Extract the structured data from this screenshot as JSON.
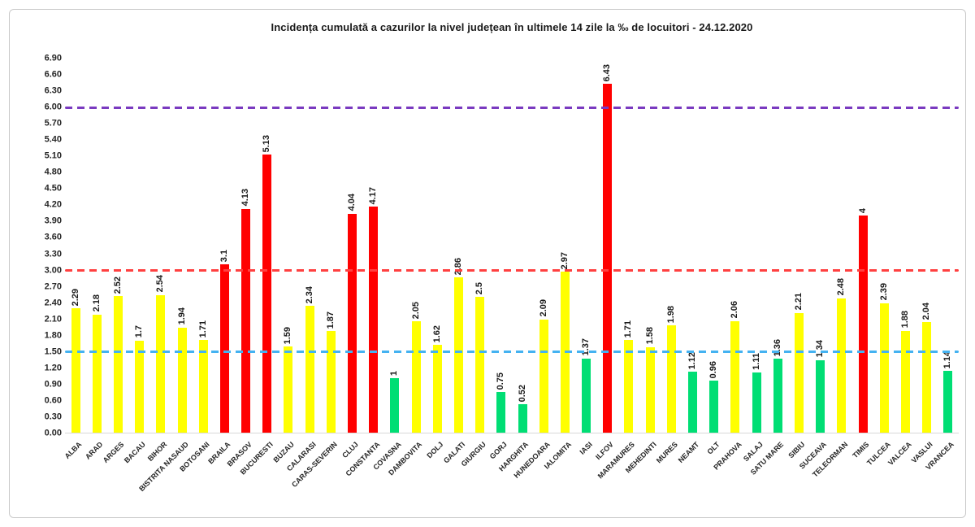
{
  "chart_data": {
    "type": "bar",
    "title": "Incidența cumulată a cazurilor la nivel județean în ultimele 14 zile la ‰ de locuitori - 24.12.2020",
    "xlabel": "",
    "ylabel": "",
    "ylim": [
      0,
      6.9
    ],
    "ytick_step": 0.3,
    "yticks": [
      "0.00",
      "0.30",
      "0.60",
      "0.90",
      "1.20",
      "1.50",
      "1.80",
      "2.10",
      "2.40",
      "2.70",
      "3.00",
      "3.30",
      "3.60",
      "3.90",
      "4.20",
      "4.50",
      "4.80",
      "5.10",
      "5.40",
      "5.70",
      "6.00",
      "6.30",
      "6.60",
      "6.90"
    ],
    "grid": "off",
    "legend": "none",
    "categories": [
      "ALBA",
      "ARAD",
      "ARGES",
      "BACAU",
      "BIHOR",
      "BISTRITA NASAUD",
      "BOTOSANI",
      "BRAILA",
      "BRASOV",
      "BUCURESTI",
      "BUZAU",
      "CALARASI",
      "CARAS-SEVERIN",
      "CLUJ",
      "CONSTANTA",
      "COVASNA",
      "DAMBOVITA",
      "DOLJ",
      "GALATI",
      "GIURGIU",
      "GORJ",
      "HARGHITA",
      "HUNEDOARA",
      "IALOMITA",
      "IASI",
      "ILFOV",
      "MARAMURES",
      "MEHEDINTI",
      "MURES",
      "NEAMT",
      "OLT",
      "PRAHOVA",
      "SALAJ",
      "SATU MARE",
      "SIBIU",
      "SUCEAVA",
      "TELEORMAN",
      "TIMIS",
      "TULCEA",
      "VALCEA",
      "VASLUI",
      "VRANCEA"
    ],
    "values": [
      2.29,
      2.18,
      2.52,
      1.7,
      2.54,
      1.94,
      1.71,
      3.1,
      4.13,
      5.13,
      1.59,
      2.34,
      1.87,
      4.04,
      4.17,
      1,
      2.05,
      1.62,
      2.86,
      2.5,
      0.75,
      0.52,
      2.09,
      2.97,
      1.37,
      6.43,
      1.71,
      1.58,
      1.98,
      1.12,
      0.96,
      2.06,
      1.11,
      1.36,
      2.21,
      1.34,
      2.48,
      4,
      2.39,
      1.88,
      2.04,
      1.14
    ],
    "value_labels": [
      "2.29",
      "2.18",
      "2.52",
      "1.7",
      "2.54",
      "1.94",
      "1.71",
      "3.1",
      "4.13",
      "5.13",
      "1.59",
      "2.34",
      "1.87",
      "4.04",
      "4.17",
      "1",
      "2.05",
      "1.62",
      "2.86",
      "2.5",
      "0.75",
      "0.52",
      "2.09",
      "2.97",
      "1.37",
      "6.43",
      "1.71",
      "1.58",
      "1.98",
      "1.12",
      "0.96",
      "2.06",
      "1.11",
      "1.36",
      "2.21",
      "1.34",
      "2.48",
      "4",
      "2.39",
      "1.88",
      "2.04",
      "1.14"
    ],
    "color_rule": {
      "green_below": 1.5,
      "red_above": 3.0
    },
    "palette": {
      "green": "#00DE74",
      "yellow": "#FFFF00",
      "red": "#FF0000"
    },
    "reference_lines": [
      {
        "value": 1.5,
        "color": "#44B2F1",
        "style": "dashed"
      },
      {
        "value": 3.0,
        "color": "#FF4040",
        "style": "dashed"
      },
      {
        "value": 6.0,
        "color": "#7A3AC0",
        "style": "dashed"
      }
    ]
  }
}
